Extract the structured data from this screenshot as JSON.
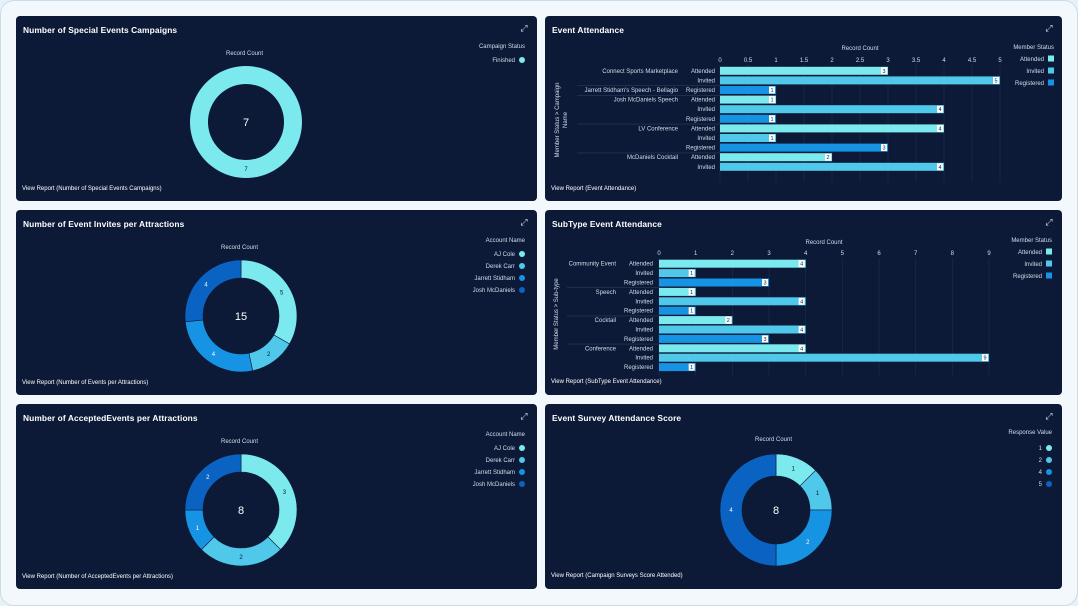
{
  "colors": {
    "aqua": "#7ce9ee",
    "cyan": "#4fc8ea",
    "blue": "#1793e3",
    "dark_blue": "#0a63c2",
    "card_bg": "#0c1a37"
  },
  "expand_icon": "expand-icon",
  "cards": {
    "c1": {
      "title": "Number of Special Events Campaigns",
      "record_count": "Record Count",
      "center": "7",
      "legend_title": "Campaign Status",
      "legend": [
        "Finished"
      ],
      "slice_labels": [
        "7"
      ],
      "values": [
        7
      ],
      "view_report": "View Report (Number of Special Events Campaigns)"
    },
    "c2": {
      "title": "Event Attendance",
      "view_report": "View Report (Event Attendance)"
    },
    "c3": {
      "title": "Number of Event Invites per Attractions",
      "record_count": "Record Count",
      "center": "15",
      "legend_title": "Account Name",
      "legend": [
        "AJ Cole",
        "Derek Carr",
        "Jarrett Stidham",
        "Josh McDaniels"
      ],
      "values": [
        5,
        2,
        4,
        4
      ],
      "view_report": "View Report (Number of Events per Attractions)"
    },
    "c4": {
      "title": "SubType Event Attendance",
      "view_report": "View Report (SubType Event Attendance)"
    },
    "c5": {
      "title": "Number of AcceptedEvents per Attractions",
      "record_count": "Record Count",
      "center": "8",
      "legend_title": "Account Name",
      "legend": [
        "AJ Cole",
        "Derek Carr",
        "Jarrett Stidham",
        "Josh McDaniels"
      ],
      "values": [
        3,
        2,
        1,
        2
      ],
      "view_report": "View Report (Number of AcceptedEvents per Attractions)"
    },
    "c6": {
      "title": "Event Survey Attendance Score",
      "record_count": "Record Count",
      "center": "8",
      "legend_title": "Response Value",
      "legend": [
        "1",
        "2",
        "4",
        "5"
      ],
      "values": [
        1,
        1,
        2,
        4
      ],
      "view_report": "View Report (Campaign Surveys Score Attended)"
    }
  },
  "chart_data": [
    {
      "type": "pie",
      "title": "Number of Special Events Campaigns",
      "measure": "Record Count",
      "legend_title": "Campaign Status",
      "categories": [
        "Finished"
      ],
      "values": [
        7
      ],
      "total": 7
    },
    {
      "type": "bar",
      "orientation": "horizontal",
      "title": "Event Attendance",
      "xlabel": "Record Count",
      "ylabel": "Member Status > Campaign Name",
      "legend_title": "Member Status",
      "legend": [
        "Attended",
        "Invited",
        "Registered"
      ],
      "xticks": [
        "0",
        "0.5",
        "1",
        "1.5",
        "2",
        "2.5",
        "3",
        "3.5",
        "4",
        "4.5",
        "5"
      ],
      "xlim": [
        0,
        5
      ],
      "groups": [
        {
          "name": "Connect Sports Marketplace",
          "rows": [
            {
              "status": "Attended",
              "value": 3
            },
            {
              "status": "Invited",
              "value": 5
            }
          ]
        },
        {
          "name": "Jarrett Stidham's Speech - Bellagio",
          "rows": [
            {
              "status": "Registered",
              "value": 1
            }
          ]
        },
        {
          "name": "Josh McDaniels Speech",
          "rows": [
            {
              "status": "Attended",
              "value": 1
            },
            {
              "status": "Invited",
              "value": 4
            },
            {
              "status": "Registered",
              "value": 1
            }
          ]
        },
        {
          "name": "LV Conference",
          "rows": [
            {
              "status": "Attended",
              "value": 4
            },
            {
              "status": "Invited",
              "value": 1
            },
            {
              "status": "Registered",
              "value": 3
            }
          ]
        },
        {
          "name": "McDaniels Cocktail",
          "rows": [
            {
              "status": "Attended",
              "value": 2
            },
            {
              "status": "Invited",
              "value": 4
            }
          ]
        }
      ]
    },
    {
      "type": "pie",
      "title": "Number of Event Invites per Attractions",
      "measure": "Record Count",
      "legend_title": "Account Name",
      "categories": [
        "AJ Cole",
        "Derek Carr",
        "Jarrett Stidham",
        "Josh McDaniels"
      ],
      "values": [
        5,
        2,
        4,
        4
      ],
      "total": 15
    },
    {
      "type": "bar",
      "orientation": "horizontal",
      "title": "SubType Event Attendance",
      "xlabel": "Record Count",
      "ylabel": "Member Status > Sub-type",
      "legend_title": "Member Status",
      "legend": [
        "Attended",
        "Invited",
        "Registered"
      ],
      "xticks": [
        "0",
        "1",
        "2",
        "3",
        "4",
        "5",
        "6",
        "7",
        "8",
        "9"
      ],
      "xlim": [
        0,
        9
      ],
      "groups": [
        {
          "name": "Community Event",
          "rows": [
            {
              "status": "Attended",
              "value": 4
            },
            {
              "status": "Invited",
              "value": 1
            },
            {
              "status": "Registered",
              "value": 3
            }
          ]
        },
        {
          "name": "Speech",
          "rows": [
            {
              "status": "Attended",
              "value": 1
            },
            {
              "status": "Invited",
              "value": 4
            },
            {
              "status": "Registered",
              "value": 1
            }
          ]
        },
        {
          "name": "Cocktail",
          "rows": [
            {
              "status": "Attended",
              "value": 2
            },
            {
              "status": "Invited",
              "value": 4
            },
            {
              "status": "Registered",
              "value": 3
            }
          ]
        },
        {
          "name": "Conference",
          "rows": [
            {
              "status": "Attended",
              "value": 4
            },
            {
              "status": "Invited",
              "value": 9
            },
            {
              "status": "Registered",
              "value": 1
            }
          ]
        }
      ]
    },
    {
      "type": "pie",
      "title": "Number of AcceptedEvents per Attractions",
      "measure": "Record Count",
      "legend_title": "Account Name",
      "categories": [
        "AJ Cole",
        "Derek Carr",
        "Jarrett Stidham",
        "Josh McDaniels"
      ],
      "values": [
        3,
        2,
        1,
        2
      ],
      "total": 8
    },
    {
      "type": "pie",
      "title": "Event Survey Attendance Score",
      "measure": "Record Count",
      "legend_title": "Response Value",
      "categories": [
        "1",
        "2",
        "4",
        "5"
      ],
      "values": [
        1,
        1,
        2,
        4
      ],
      "total": 8
    }
  ]
}
